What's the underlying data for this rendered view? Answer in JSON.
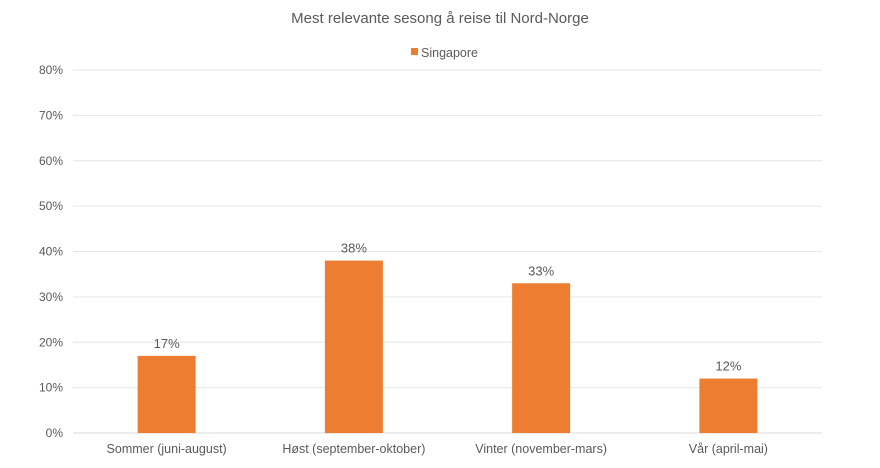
{
  "chart_data": {
    "type": "bar",
    "title": "Mest relevante sesong å reise til Nord-Norge",
    "xlabel": "",
    "ylabel": "",
    "categories": [
      "Sommer (juni-august)",
      "Høst (september-oktober)",
      "Vinter (november-mars)",
      "Vår (april-mai)"
    ],
    "series": [
      {
        "name": "Singapore",
        "values": [
          17,
          38,
          33,
          12
        ],
        "labels": [
          "17%",
          "38%",
          "33%",
          "12%"
        ],
        "color": "#ED7D31"
      }
    ],
    "ylim": [
      0,
      80
    ],
    "yticks": [
      0,
      10,
      20,
      30,
      40,
      50,
      60,
      70,
      80
    ],
    "ytick_labels": [
      "0%",
      "10%",
      "20%",
      "30%",
      "40%",
      "50%",
      "60%",
      "70%",
      "80%"
    ],
    "grid": true,
    "legend_position": "top-center"
  }
}
